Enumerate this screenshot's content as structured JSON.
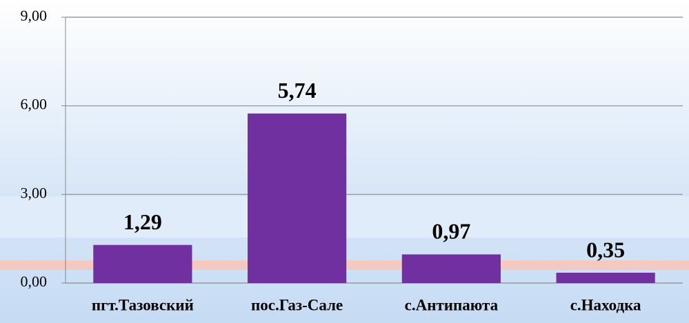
{
  "chart_data": {
    "type": "bar",
    "categories": [
      "пгт.Тазовский",
      "пос.Газ-Сале",
      "с.Антипаюта",
      "с.Находка"
    ],
    "values": [
      1.29,
      5.74,
      0.97,
      0.35
    ],
    "value_labels": [
      "1,29",
      "5,74",
      "0,97",
      "0,35"
    ],
    "color": "#7030a0",
    "ylim": [
      0,
      9
    ],
    "yticks": [
      {
        "value": 0,
        "label": "0,00"
      },
      {
        "value": 3,
        "label": "3,00"
      },
      {
        "value": 6,
        "label": "6,00"
      },
      {
        "value": 9,
        "label": "9,00"
      }
    ],
    "grid": true
  }
}
